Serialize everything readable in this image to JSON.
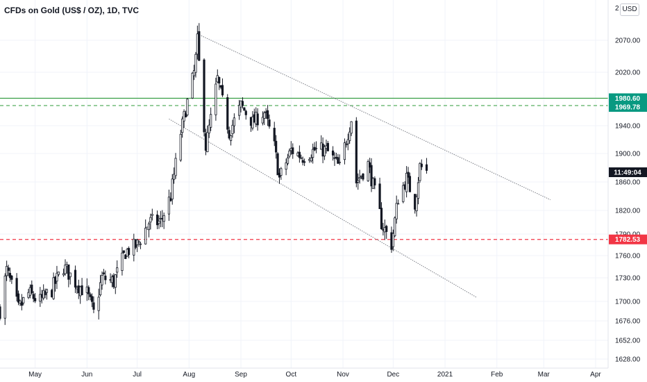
{
  "header": {
    "title": "CFDs on Gold (US$ / OZ), 1D, TVC",
    "currency_button": "USD"
  },
  "axis": {
    "y_ticks": [
      "2070.00",
      "2020.00",
      "1980.00",
      "1940.00",
      "1900.00",
      "1860.00",
      "1820.00",
      "1790.00",
      "1760.00",
      "1730.00",
      "1700.00",
      "1676.00",
      "1652.00",
      "1628.00"
    ],
    "x_ticks": [
      "May",
      "Jun",
      "Jul",
      "Aug",
      "Sep",
      "Oct",
      "Nov",
      "Dec",
      "2021",
      "Feb",
      "Mar",
      "Apr"
    ],
    "top_tick_partial": "2"
  },
  "levels": {
    "resistance_solid": {
      "value": "1980.60",
      "color": "#089981"
    },
    "resistance_dashed": {
      "value": "1969.78",
      "color": "#089981"
    },
    "support_dashed": {
      "value": "1782.53",
      "color": "#f23645"
    },
    "time_label": "11:49:04"
  },
  "colors": {
    "candle": "#131722",
    "level_green": "#2e9b3a",
    "level_red": "#f23645",
    "trendline": "#7b7e86",
    "grid": "#f0f3fa"
  },
  "chart_data": {
    "type": "candlestick",
    "title": "CFDs on Gold (US$ / OZ), 1D, TVC",
    "y_scale": "log",
    "ylim": [
      1620,
      2095
    ],
    "x_range": [
      "2020-04-10",
      "2021-04-12"
    ],
    "horizontal_lines": [
      1980.6,
      1969.78,
      1782.53
    ],
    "trendlines": [
      {
        "from": [
          "2020-08-06",
          2075
        ],
        "to": [
          "2021-03-05",
          1835
        ]
      },
      {
        "from": [
          "2020-07-20",
          1950
        ],
        "to": [
          "2021-01-20",
          1705
        ]
      }
    ],
    "close_path": [
      [
        "2020-04-10",
        1690
      ],
      [
        "2020-04-14",
        1740
      ],
      [
        "2020-04-21",
        1690
      ],
      [
        "2020-04-27",
        1710
      ],
      [
        "2020-05-04",
        1700
      ],
      [
        "2020-05-11",
        1715
      ],
      [
        "2020-05-18",
        1745
      ],
      [
        "2020-05-25",
        1725
      ],
      [
        "2020-06-01",
        1710
      ],
      [
        "2020-06-05",
        1685
      ],
      [
        "2020-06-10",
        1730
      ],
      [
        "2020-06-17",
        1725
      ],
      [
        "2020-06-24",
        1765
      ],
      [
        "2020-07-01",
        1775
      ],
      [
        "2020-07-08",
        1805
      ],
      [
        "2020-07-15",
        1805
      ],
      [
        "2020-07-21",
        1840
      ],
      [
        "2020-07-27",
        1930
      ],
      [
        "2020-08-04",
        2020
      ],
      [
        "2020-08-06",
        2065
      ],
      [
        "2020-08-11",
        1910
      ],
      [
        "2020-08-14",
        1950
      ],
      [
        "2020-08-18",
        2010
      ],
      [
        "2020-08-25",
        1930
      ],
      [
        "2020-09-01",
        1970
      ],
      [
        "2020-09-08",
        1945
      ],
      [
        "2020-09-15",
        1960
      ],
      [
        "2020-09-21",
        1910
      ],
      [
        "2020-09-24",
        1865
      ],
      [
        "2020-10-01",
        1905
      ],
      [
        "2020-10-08",
        1895
      ],
      [
        "2020-10-15",
        1905
      ],
      [
        "2020-10-22",
        1905
      ],
      [
        "2020-10-30",
        1880
      ],
      [
        "2020-11-06",
        1950
      ],
      [
        "2020-11-09",
        1860
      ],
      [
        "2020-11-16",
        1885
      ],
      [
        "2020-11-24",
        1805
      ],
      [
        "2020-11-30",
        1776
      ],
      [
        "2020-12-04",
        1838
      ],
      [
        "2020-12-09",
        1865
      ],
      [
        "2020-12-14",
        1830
      ],
      [
        "2020-12-17",
        1882
      ],
      [
        "2020-12-21",
        1875
      ]
    ]
  }
}
